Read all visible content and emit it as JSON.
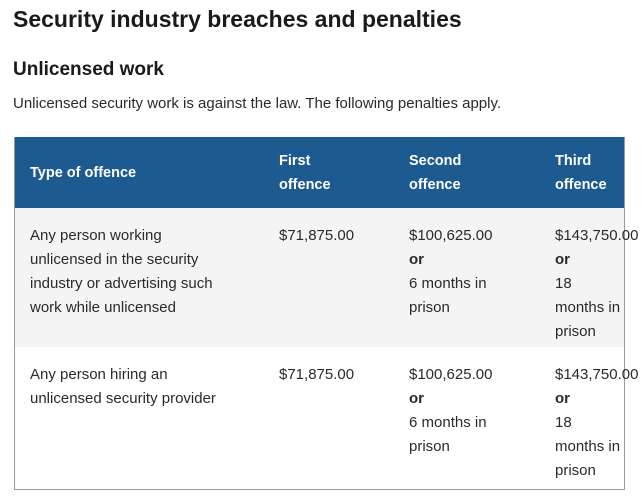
{
  "page": {
    "title": "Security industry breaches and penalties"
  },
  "section": {
    "title": "Unlicensed work",
    "intro": "Unlicensed security work is against the law. The following penalties apply."
  },
  "table": {
    "headers": {
      "type": "Type of offence",
      "first_line1": "First",
      "first_line2": "offence",
      "second_line1": "Second",
      "second_line2": "offence",
      "third": "Third offence"
    },
    "rows": [
      {
        "type_lines": [
          "Any person working",
          "unlicensed in the security",
          "industry or advertising such",
          "work while unlicensed"
        ],
        "first": "$71,875.00",
        "second_amount": "$100,625.00",
        "second_or": "or",
        "second_prison_lines": [
          "6 months in",
          "prison"
        ],
        "third_amount": "$143,750.00",
        "third_or": "or",
        "third_prison_lines": [
          "18 months in",
          "prison"
        ]
      },
      {
        "type_lines": [
          "Any person hiring an",
          "unlicensed security provider"
        ],
        "first": "$71,875.00",
        "second_amount": "$100,625.00",
        "second_or": "or",
        "second_prison_lines": [
          "6 months in",
          "prison"
        ],
        "third_amount": "$143,750.00",
        "third_or": "or",
        "third_prison_lines": [
          "18 months in",
          "prison"
        ]
      }
    ]
  },
  "colors": {
    "header_bg": "#1d5a8f",
    "row_alt_bg": "#f4f4f4"
  }
}
